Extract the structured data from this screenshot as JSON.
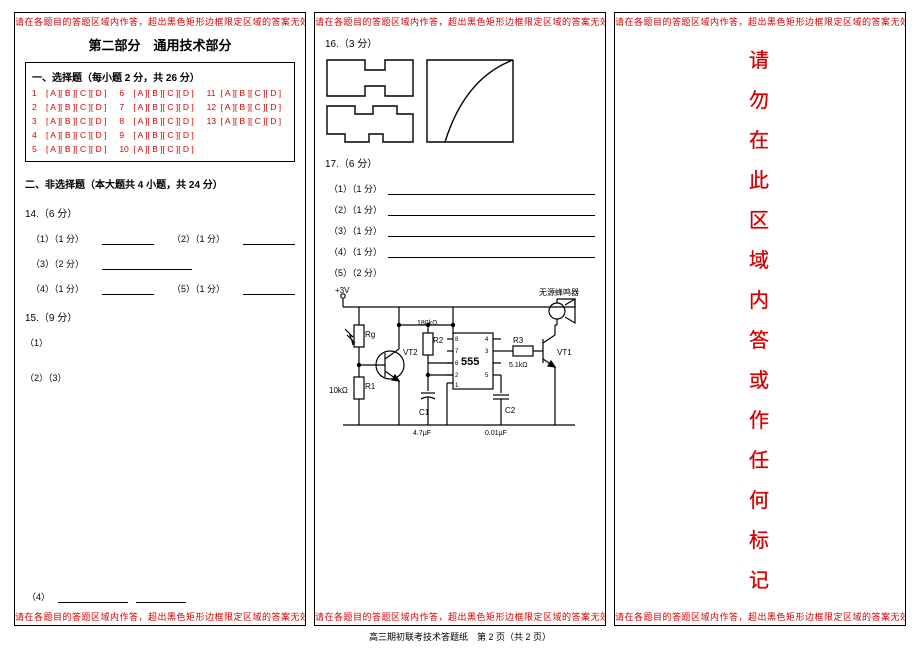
{
  "colors": {
    "red": "#d40000",
    "black": "#000000",
    "bg": "#ffffff"
  },
  "warning_text": "请在各题目的答题区域内作答，超出黑色矩形边框限定区域的答案无效",
  "panel1": {
    "title": "第二部分　通用技术部分",
    "mc_header": "一、选择题（每小题 2 分，共 26 分）",
    "mc_option_label": "[ A ][ B ][ C ][ D ]",
    "mc_rows": [
      [
        "1",
        "6",
        "11"
      ],
      [
        "2",
        "7",
        "12"
      ],
      [
        "3",
        "8",
        "13"
      ],
      [
        "4",
        "9",
        ""
      ],
      [
        "5",
        "10",
        ""
      ]
    ],
    "sec2_header": "二、非选择题（本大题共 4 小题，共 24 分）",
    "q14": {
      "head": "14.（6 分）",
      "subs": [
        {
          "label": "（1）（1 分）"
        },
        {
          "label": "（2）（1 分）"
        },
        {
          "label": "（3）（2 分）"
        },
        {
          "label": "（4）（1 分）"
        },
        {
          "label": "（5）（1 分）"
        }
      ]
    },
    "q15": {
      "head": "15.（9 分）",
      "sub1": "（1）",
      "sub2": "（2）（3）",
      "foot_label": "（4）"
    }
  },
  "panel2": {
    "q16": {
      "head": "16.（3 分）"
    },
    "q17": {
      "head": "17.（6 分）",
      "subs": [
        {
          "label": "（1）（1 分）"
        },
        {
          "label": "（2）（1 分）"
        },
        {
          "label": "（3）（1 分）"
        },
        {
          "label": "（4）（1 分）"
        },
        {
          "label": "（5）（2 分）"
        }
      ]
    },
    "circuit": {
      "labels": {
        "supply": "+3V",
        "rg": "Rg",
        "vt2": "VT2",
        "r1": "R1",
        "r1_val": "10kΩ",
        "r2": "R2",
        "r2_val": "180kΩ",
        "c1": "C1",
        "c1_val": "4.7μF",
        "c2": "C2",
        "c2_val": "0.01μF",
        "r3": "R3",
        "r3_val": "5.1kΩ",
        "chip": "555",
        "pins": [
          "1",
          "2",
          "3",
          "4",
          "5",
          "6",
          "7",
          "8"
        ],
        "vt1": "VT1",
        "buzzer": "无源蜂鸣器"
      }
    }
  },
  "panel3": {
    "forbidden_chars": [
      "请",
      "勿",
      "在",
      "此",
      "区",
      "域",
      "内",
      "答",
      "或",
      "作",
      "任",
      "何",
      "标",
      "记"
    ]
  },
  "footer": "高三期初联考技术答题纸　第 2 页（共 2 页）"
}
